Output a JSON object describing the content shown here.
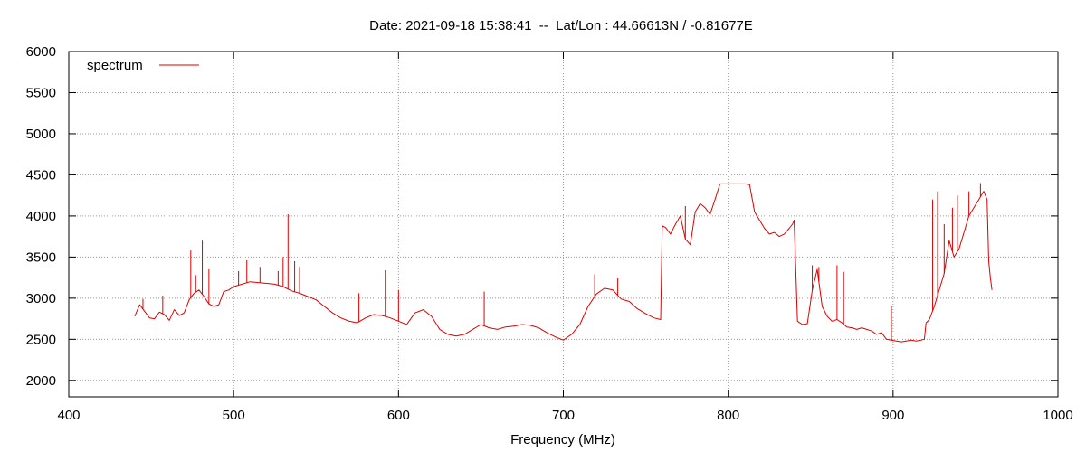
{
  "chart_data": {
    "type": "line",
    "title": "Date: 2021-09-18 15:38:41  --  Lat/Lon : 44.66613N / -0.81677E",
    "xlabel": "Frequency (MHz)",
    "ylabel": "",
    "xlim": [
      400,
      1000
    ],
    "ylim": [
      1800,
      6000
    ],
    "x_ticks": [
      400,
      500,
      600,
      700,
      800,
      900,
      1000
    ],
    "y_ticks": [
      2000,
      2500,
      3000,
      3500,
      4000,
      4500,
      5000,
      5500,
      6000
    ],
    "grid": true,
    "legend_position": "top-left",
    "series": [
      {
        "name": "spectrum",
        "color": "#dd0000",
        "x": [
          440,
          443,
          446,
          449,
          452,
          455,
          458,
          461,
          464,
          467,
          470,
          473,
          476,
          479,
          482,
          485,
          488,
          491,
          494,
          497,
          500,
          505,
          510,
          515,
          520,
          525,
          530,
          535,
          540,
          545,
          550,
          555,
          560,
          565,
          570,
          575,
          580,
          585,
          590,
          595,
          600,
          605,
          610,
          615,
          620,
          625,
          630,
          635,
          640,
          645,
          650,
          655,
          660,
          665,
          670,
          675,
          680,
          685,
          690,
          695,
          700,
          705,
          710,
          715,
          720,
          725,
          730,
          735,
          740,
          745,
          750,
          755,
          759,
          760,
          762,
          765,
          768,
          771,
          774,
          777,
          780,
          783,
          786,
          789,
          792,
          795,
          800,
          805,
          810,
          813,
          816,
          819,
          822,
          825,
          828,
          831,
          834,
          837,
          839,
          840,
          842,
          845,
          848,
          851,
          854,
          857,
          860,
          863,
          866,
          869,
          872,
          875,
          878,
          881,
          884,
          887,
          890,
          893,
          896,
          899,
          902,
          905,
          908,
          911,
          914,
          917,
          919,
          920,
          922,
          925,
          928,
          931,
          934,
          937,
          940,
          943,
          946,
          949,
          952,
          955,
          957,
          958,
          959,
          960
        ],
        "y": [
          2780,
          2920,
          2840,
          2760,
          2750,
          2830,
          2800,
          2730,
          2860,
          2790,
          2820,
          2980,
          3060,
          3100,
          3020,
          2930,
          2900,
          2920,
          3080,
          3100,
          3140,
          3170,
          3200,
          3190,
          3180,
          3170,
          3140,
          3090,
          3060,
          3020,
          2980,
          2900,
          2820,
          2760,
          2720,
          2700,
          2760,
          2800,
          2790,
          2760,
          2720,
          2680,
          2820,
          2860,
          2780,
          2620,
          2560,
          2540,
          2560,
          2620,
          2680,
          2640,
          2620,
          2650,
          2660,
          2680,
          2670,
          2640,
          2580,
          2530,
          2490,
          2560,
          2680,
          2900,
          3050,
          3120,
          3100,
          2990,
          2960,
          2870,
          2810,
          2760,
          2740,
          3880,
          3860,
          3780,
          3900,
          4000,
          3720,
          3650,
          4050,
          4150,
          4100,
          4020,
          4200,
          4390,
          4390,
          4390,
          4390,
          4380,
          4050,
          3950,
          3850,
          3780,
          3800,
          3750,
          3780,
          3850,
          3900,
          3950,
          2720,
          2680,
          2690,
          3100,
          3350,
          2900,
          2780,
          2720,
          2740,
          2700,
          2650,
          2640,
          2620,
          2640,
          2620,
          2600,
          2560,
          2580,
          2500,
          2490,
          2480,
          2470,
          2480,
          2490,
          2480,
          2490,
          2500,
          2700,
          2740,
          2900,
          3100,
          3300,
          3700,
          3500,
          3600,
          3800,
          4000,
          4100,
          4200,
          4300,
          4200,
          3450,
          3250,
          3100
        ]
      }
    ],
    "spikes": [
      {
        "x": 445,
        "y": 2990
      },
      {
        "x": 457,
        "y": 3030
      },
      {
        "x": 474,
        "y": 3580
      },
      {
        "x": 477,
        "y": 3280
      },
      {
        "x": 481,
        "y": 3700
      },
      {
        "x": 485,
        "y": 3350
      },
      {
        "x": 503,
        "y": 3330
      },
      {
        "x": 508,
        "y": 3460
      },
      {
        "x": 516,
        "y": 3380
      },
      {
        "x": 527,
        "y": 3330
      },
      {
        "x": 530,
        "y": 3500
      },
      {
        "x": 533,
        "y": 4020
      },
      {
        "x": 537,
        "y": 3450
      },
      {
        "x": 540,
        "y": 3380
      },
      {
        "x": 576,
        "y": 3060
      },
      {
        "x": 592,
        "y": 3340
      },
      {
        "x": 600,
        "y": 3100
      },
      {
        "x": 652,
        "y": 3080
      },
      {
        "x": 719,
        "y": 3290
      },
      {
        "x": 733,
        "y": 3250
      },
      {
        "x": 774,
        "y": 4120
      },
      {
        "x": 851,
        "y": 3400
      },
      {
        "x": 855,
        "y": 3380
      },
      {
        "x": 866,
        "y": 3400
      },
      {
        "x": 870,
        "y": 3320
      },
      {
        "x": 899,
        "y": 2900
      },
      {
        "x": 924,
        "y": 4200
      },
      {
        "x": 927,
        "y": 4300
      },
      {
        "x": 931,
        "y": 3900
      },
      {
        "x": 936,
        "y": 4100
      },
      {
        "x": 939,
        "y": 4250
      },
      {
        "x": 946,
        "y": 4300
      },
      {
        "x": 953,
        "y": 4400
      }
    ]
  }
}
